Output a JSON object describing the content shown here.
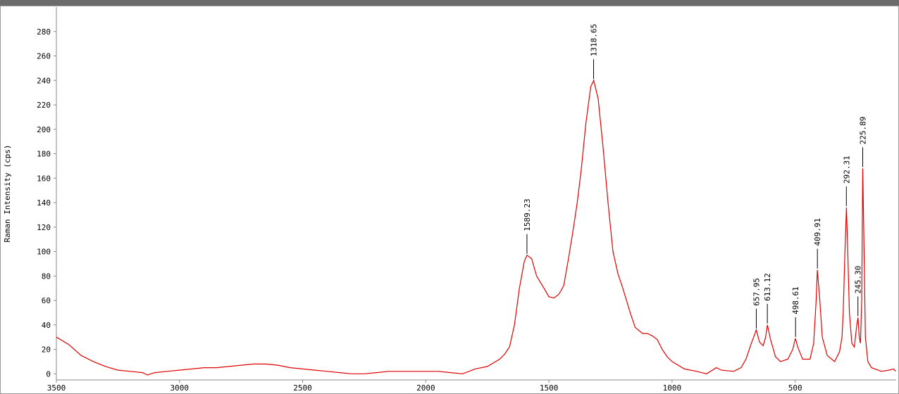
{
  "chart_data": {
    "type": "line",
    "y_label": "Raman Intensity (cps)",
    "xlim": [
      3500,
      90
    ],
    "ylim": [
      -5,
      300
    ],
    "xticks": [
      3500,
      3000,
      2500,
      2000,
      1500,
      1000,
      500
    ],
    "yticks": [
      0,
      20,
      40,
      60,
      80,
      100,
      120,
      140,
      160,
      180,
      200,
      220,
      240,
      260,
      280
    ],
    "series": [
      {
        "color": "#e00000",
        "x": [
          3500,
          3450,
          3400,
          3350,
          3300,
          3250,
          3200,
          3150,
          3130,
          3100,
          3050,
          3000,
          2950,
          2900,
          2850,
          2800,
          2750,
          2700,
          2650,
          2600,
          2550,
          2500,
          2450,
          2400,
          2350,
          2300,
          2250,
          2200,
          2150,
          2100,
          2050,
          2000,
          1950,
          1900,
          1850,
          1800,
          1750,
          1700,
          1680,
          1660,
          1640,
          1620,
          1600,
          1589,
          1570,
          1550,
          1520,
          1500,
          1480,
          1460,
          1440,
          1420,
          1400,
          1385,
          1370,
          1350,
          1330,
          1318,
          1300,
          1290,
          1280,
          1260,
          1240,
          1220,
          1200,
          1170,
          1150,
          1120,
          1100,
          1080,
          1060,
          1040,
          1020,
          1000,
          950,
          900,
          860,
          820,
          800,
          750,
          720,
          700,
          680,
          665,
          658,
          645,
          630,
          620,
          613,
          600,
          580,
          560,
          530,
          510,
          499,
          490,
          470,
          440,
          425,
          415,
          410,
          400,
          390,
          370,
          340,
          320,
          310,
          305,
          298,
          292,
          288,
          280,
          270,
          260,
          250,
          245,
          240,
          235,
          230,
          226,
          222,
          215,
          205,
          190,
          150,
          120,
          100,
          92
        ],
        "values": [
          30,
          24,
          15,
          10,
          6,
          3,
          2,
          1,
          -1,
          1,
          2,
          3,
          4,
          5,
          5,
          6,
          7,
          8,
          8,
          7,
          5,
          4,
          3,
          2,
          1,
          0,
          0,
          1,
          2,
          2,
          2,
          2,
          2,
          1,
          0,
          4,
          6,
          12,
          16,
          22,
          40,
          70,
          92,
          97,
          94,
          80,
          70,
          63,
          62,
          65,
          72,
          95,
          120,
          140,
          165,
          205,
          235,
          240,
          225,
          205,
          185,
          140,
          100,
          82,
          70,
          50,
          38,
          33,
          33,
          31,
          28,
          20,
          14,
          10,
          4,
          2,
          0,
          5,
          3,
          2,
          5,
          12,
          24,
          32,
          36,
          26,
          23,
          30,
          40,
          28,
          14,
          10,
          12,
          20,
          29,
          22,
          12,
          12,
          25,
          60,
          85,
          60,
          30,
          15,
          10,
          18,
          30,
          50,
          100,
          136,
          110,
          50,
          25,
          22,
          40,
          46,
          30,
          25,
          60,
          168,
          120,
          30,
          10,
          5,
          2,
          3,
          4,
          2
        ]
      }
    ],
    "annotations": [
      {
        "x": {
          "value": 1589.23,
          "label": "1589.23"
        },
        "y": 97
      },
      {
        "x": {
          "value": 1318.65,
          "label": "1318.65"
        },
        "y": 240
      },
      {
        "x": {
          "value": 657.95,
          "label": "657.95"
        },
        "y": 36
      },
      {
        "x": {
          "value": 613.12,
          "label": "613.12"
        },
        "y": 40
      },
      {
        "x": {
          "value": 498.61,
          "label": "498.61"
        },
        "y": 29
      },
      {
        "x": {
          "value": 409.91,
          "label": "409.91"
        },
        "y": 85
      },
      {
        "x": {
          "value": 292.31,
          "label": "292.31"
        },
        "y": 136
      },
      {
        "x": {
          "value": 245.3,
          "label": "245.30"
        },
        "y": 46
      },
      {
        "x": {
          "value": 225.89,
          "label": "225.89"
        },
        "y": 168
      }
    ]
  }
}
